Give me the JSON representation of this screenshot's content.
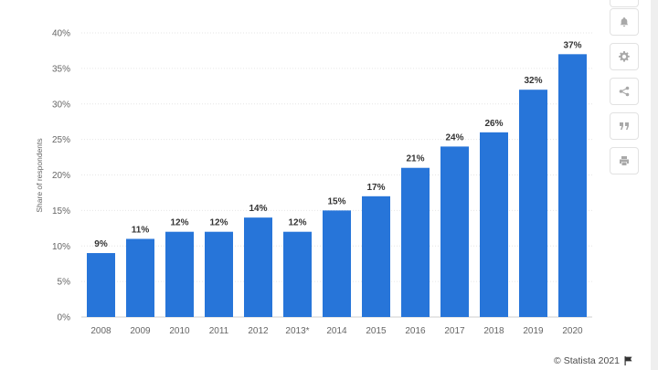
{
  "chart_data": {
    "type": "bar",
    "categories": [
      "2008",
      "2009",
      "2010",
      "2011",
      "2012",
      "2013*",
      "2014",
      "2015",
      "2016",
      "2017",
      "2018",
      "2019",
      "2020"
    ],
    "values": [
      9,
      11,
      12,
      12,
      14,
      12,
      15,
      17,
      21,
      24,
      26,
      32,
      37
    ],
    "data_labels": [
      "9%",
      "11%",
      "12%",
      "12%",
      "14%",
      "12%",
      "15%",
      "17%",
      "21%",
      "24%",
      "26%",
      "32%",
      "37%"
    ],
    "ylabel": "Share of respondents",
    "ylim": [
      0,
      40
    ],
    "yticks": [
      0,
      5,
      10,
      15,
      20,
      25,
      30,
      35,
      40
    ],
    "ytick_labels": [
      "0%",
      "5%",
      "10%",
      "15%",
      "20%",
      "25%",
      "30%",
      "35%",
      "40%"
    ],
    "bar_color": "#2775d9",
    "grid": true
  },
  "toolbar": {
    "items": [
      {
        "name": "bell-icon"
      },
      {
        "name": "gear-icon"
      },
      {
        "name": "share-icon"
      },
      {
        "name": "quote-icon"
      },
      {
        "name": "print-icon"
      }
    ]
  },
  "footer": {
    "credit": "© Statista 2021",
    "icon": "flag-icon"
  }
}
